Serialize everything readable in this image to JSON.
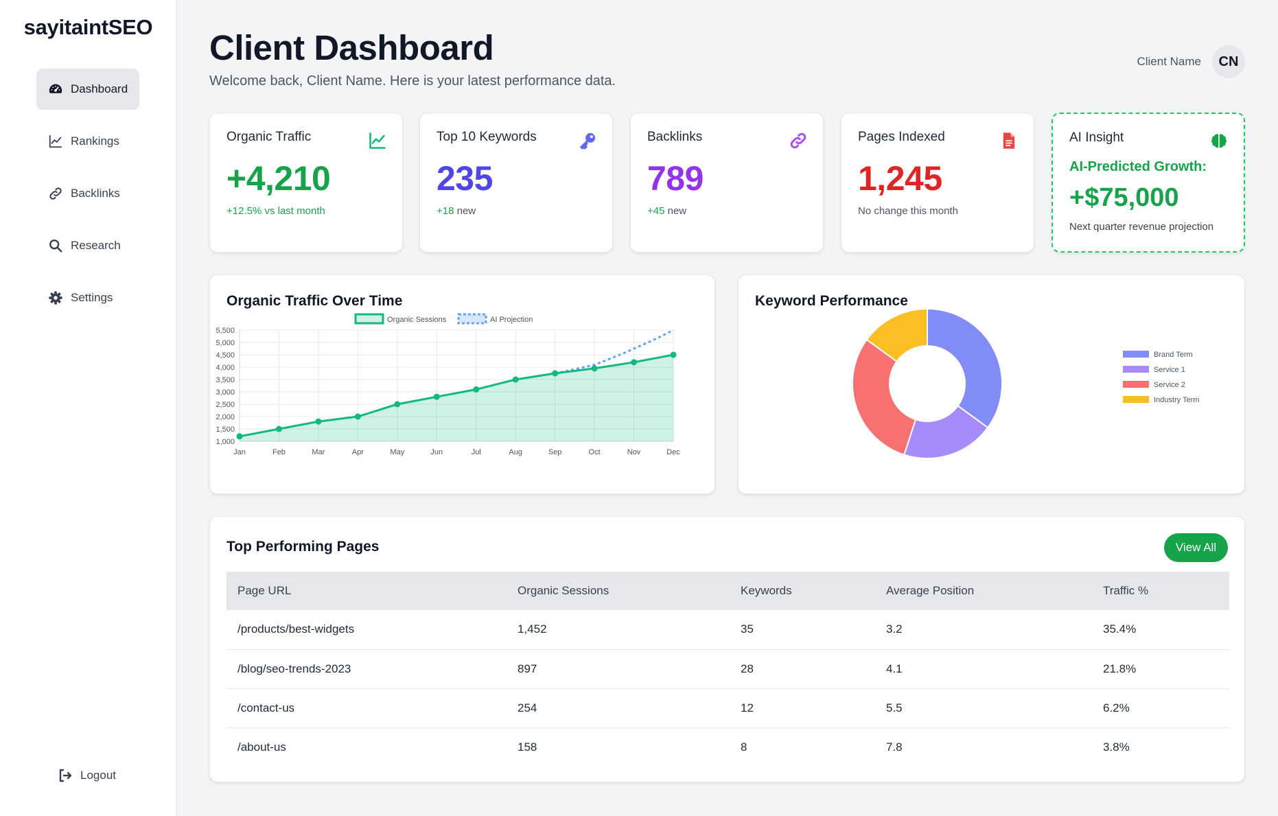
{
  "brand": "sayitaintSEO",
  "sidebar": {
    "items": [
      {
        "label": "Dashboard",
        "icon": "gauge-icon",
        "active": true
      },
      {
        "label": "Rankings",
        "icon": "chart-line-icon"
      },
      {
        "label": "Backlinks",
        "icon": "link-icon"
      },
      {
        "label": "Research",
        "icon": "search-icon"
      },
      {
        "label": "Settings",
        "icon": "gear-icon"
      }
    ],
    "logout": "Logout"
  },
  "header": {
    "title": "Client Dashboard",
    "subtitle": "Welcome back, Client Name. Here is your latest performance data.",
    "user_name": "Client Name",
    "avatar_initials": "CN"
  },
  "stats": [
    {
      "label": "Organic Traffic",
      "value": "+4,210",
      "note": "+12.5% vs last month",
      "color": "#16a34a",
      "note_color": "#16a34a",
      "icon": "chart-line-icon"
    },
    {
      "label": "Top 10 Keywords",
      "value": "235",
      "note": "+18 new",
      "color": "#4f46e5",
      "icon": "key-icon"
    },
    {
      "label": "Backlinks",
      "value": "789",
      "note": "+45 new",
      "color": "#9333ea",
      "icon": "link-icon"
    },
    {
      "label": "Pages Indexed",
      "value": "1,245",
      "note": "No change this month",
      "color": "#dc2626",
      "icon": "file-icon"
    }
  ],
  "ai_insight": {
    "label": "AI Insight",
    "heading": "AI-Predicted Growth:",
    "value": "+$75,000",
    "note": "Next quarter revenue projection",
    "icon": "brain-icon",
    "color": "#16a34a"
  },
  "traffic_chart": {
    "title": "Organic Traffic Over Time"
  },
  "keyword_chart": {
    "title": "Keyword Performance"
  },
  "chart_data": [
    {
      "type": "line",
      "title": "Organic Traffic Over Time",
      "categories": [
        "Jan",
        "Feb",
        "Mar",
        "Apr",
        "May",
        "Jun",
        "Jul",
        "Aug",
        "Sep",
        "Oct",
        "Nov",
        "Dec"
      ],
      "series": [
        {
          "name": "Organic Sessions",
          "values": [
            1200,
            1500,
            1800,
            2000,
            2500,
            2800,
            3100,
            3500,
            3750,
            3950,
            4200,
            4500
          ],
          "color": "#10b981"
        },
        {
          "name": "AI Projection",
          "values": [
            null,
            null,
            null,
            null,
            null,
            null,
            null,
            null,
            3750,
            4100,
            4750,
            5500
          ],
          "color": "#60a5fa"
        }
      ],
      "ylim": [
        1000,
        5500
      ],
      "yticks": [
        "1,000",
        "1,500",
        "2,000",
        "2,500",
        "3,000",
        "3,500",
        "4,000",
        "4,500",
        "5,000",
        "5,500"
      ],
      "ytick_values": [
        1000,
        1500,
        2000,
        2500,
        3000,
        3500,
        4000,
        4500,
        5000,
        5500
      ],
      "legend": "top-center",
      "grid": true
    },
    {
      "type": "pie",
      "title": "Keyword Performance",
      "categories": [
        "Brand Term",
        "Service 1",
        "Service 2",
        "Industry Term"
      ],
      "values": [
        35,
        20,
        30,
        15
      ],
      "colors": [
        "#818cf8",
        "#a78bfa",
        "#f87171",
        "#fbbf24"
      ],
      "legend": "right"
    }
  ],
  "top_pages": {
    "title": "Top Performing Pages",
    "view_all": "View All",
    "columns": [
      "Page URL",
      "Organic Sessions",
      "Keywords",
      "Average Position",
      "Traffic %"
    ],
    "rows": [
      [
        "/products/best-widgets",
        "1,452",
        "35",
        "3.2",
        "35.4%"
      ],
      [
        "/blog/seo-trends-2023",
        "897",
        "28",
        "4.1",
        "21.8%"
      ],
      [
        "/contact-us",
        "254",
        "12",
        "5.5",
        "6.2%"
      ],
      [
        "/about-us",
        "158",
        "8",
        "7.8",
        "3.8%"
      ]
    ]
  }
}
